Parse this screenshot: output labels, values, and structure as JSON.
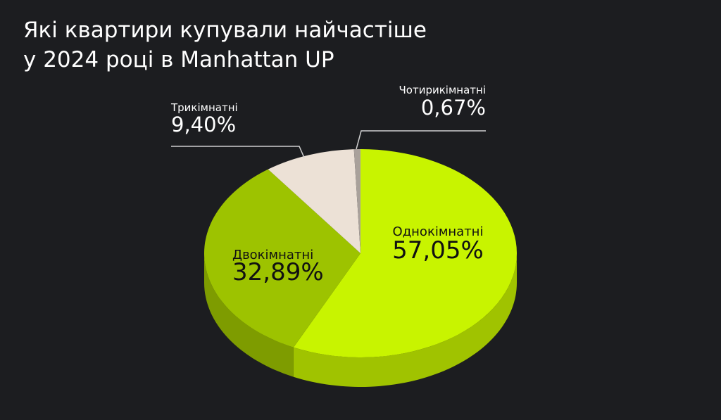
{
  "chart_data": {
    "type": "pie",
    "title": "Які квартири купували найчастіше у 2024 році в Manhattan UP",
    "categories": [
      "Однокімнатні",
      "Двокімнатні",
      "Трикімнатні",
      "Чотирикімнатні"
    ],
    "values": [
      57.05,
      32.89,
      9.4,
      0.67
    ],
    "value_labels": [
      "57,05%",
      "32,89%",
      "9,40%",
      "0,67%"
    ],
    "colors": [
      "#c8f400",
      "#9dc300",
      "#ece1d6",
      "#a9a19b"
    ]
  }
}
